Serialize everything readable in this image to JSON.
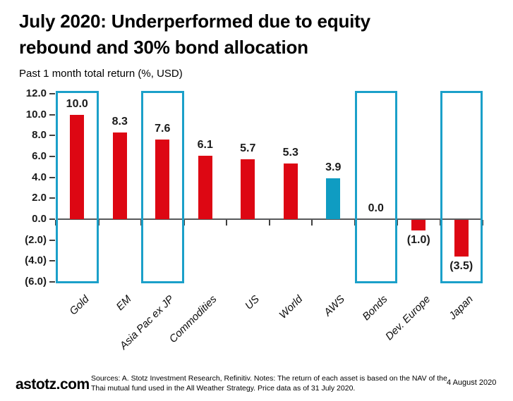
{
  "header": {
    "title_line1": "July 2020: Underperformed due to equity",
    "title_line2": "rebound and 30% bond allocation",
    "subtitle": "Past 1 month total return (%, USD)"
  },
  "footer": {
    "brand": "astotz.com",
    "sources": "Sources: A. Stotz Investment Research, Refinitiv. Notes: The return of each asset is based on the NAV of the Thai mutual fund used in the All Weather Strategy. Price data as of 31 July 2020.",
    "date": "4 August 2020"
  },
  "colors": {
    "bar_red": "#dd0713",
    "bar_teal": "#0f9cc2",
    "highlight_box": "#1ba0c9",
    "axis_line": "#58595b",
    "text": "#000000"
  },
  "chart_data": {
    "type": "bar",
    "title": "Past 1 month total return (%, USD)",
    "categories": [
      "Gold",
      "EM",
      "Asia Pac ex JP",
      "Commodities",
      "US",
      "World",
      "AWS",
      "Bonds",
      "Dev. Europe",
      "Japan"
    ],
    "values": [
      10.0,
      8.3,
      7.6,
      6.1,
      5.7,
      5.3,
      3.9,
      0.0,
      -1.0,
      -3.5
    ],
    "value_labels": [
      "10.0",
      "8.3",
      "7.6",
      "6.1",
      "5.7",
      "5.3",
      "3.9",
      "0.0",
      "(1.0)",
      "(3.5)"
    ],
    "bar_colors": [
      "red",
      "red",
      "red",
      "red",
      "red",
      "red",
      "teal",
      "red",
      "red",
      "red"
    ],
    "highlighted_categories": [
      "Gold",
      "Asia Pac ex JP",
      "Bonds",
      "Japan"
    ],
    "y_ticks": [
      12,
      10,
      8,
      6,
      4,
      2,
      0,
      -2,
      -4,
      -6
    ],
    "y_tick_labels": [
      "12.0",
      "10.0",
      "8.0",
      "6.0",
      "4.0",
      "2.0",
      "0.0",
      "(2.0)",
      "(4.0)",
      "(6.0)"
    ],
    "ylim": [
      -6.3,
      12.3
    ],
    "grid": false,
    "legend": null,
    "negative_format": "parentheses",
    "xlabel": "",
    "ylabel": "Past 1 month total return (%, USD)"
  }
}
